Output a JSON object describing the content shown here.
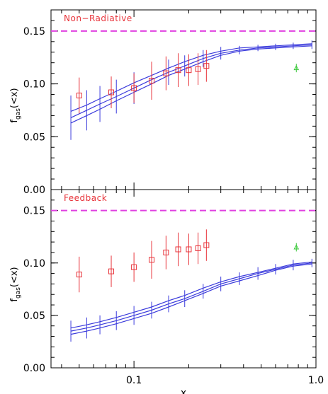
{
  "chart_data": [
    {
      "type": "line",
      "panel_label": "Non−Radiative",
      "xscale": "log",
      "xlim": [
        0.035,
        1.0
      ],
      "ylim": [
        0.0,
        0.17
      ],
      "yticks": [
        "0.00",
        "0.05",
        "0.10",
        "0.15"
      ],
      "ylabel_main": "f",
      "ylabel_sub": "gas",
      "ylabel_tail": "(<x)",
      "reference_line": {
        "y": 0.15,
        "color": "#e040e0",
        "style": "dashed"
      },
      "series": [
        {
          "kind": "model-band",
          "color": "#3b3bdc",
          "x": [
            0.045,
            0.055,
            0.065,
            0.08,
            0.1,
            0.125,
            0.155,
            0.19,
            0.24,
            0.3,
            0.38,
            0.48,
            0.6,
            0.75,
            0.95
          ],
          "upper": [
            0.074,
            0.08,
            0.086,
            0.093,
            0.101,
            0.108,
            0.115,
            0.121,
            0.127,
            0.131,
            0.134,
            0.135,
            0.136,
            0.137,
            0.138
          ],
          "mid": [
            0.068,
            0.075,
            0.081,
            0.088,
            0.096,
            0.104,
            0.111,
            0.117,
            0.124,
            0.129,
            0.132,
            0.134,
            0.135,
            0.136,
            0.137
          ],
          "lower": [
            0.063,
            0.07,
            0.076,
            0.084,
            0.092,
            0.1,
            0.108,
            0.114,
            0.121,
            0.127,
            0.131,
            0.133,
            0.134,
            0.135,
            0.136
          ],
          "err": [
            0.021,
            0.019,
            0.017,
            0.016,
            0.015,
            0.013,
            0.012,
            0.01,
            0.008,
            0.006,
            0.004,
            0.003,
            0.003,
            0.003,
            0.004
          ]
        },
        {
          "kind": "observed",
          "marker": "square",
          "color": "#e8333a",
          "x": [
            0.05,
            0.075,
            0.1,
            0.125,
            0.15,
            0.175,
            0.2,
            0.225,
            0.25
          ],
          "y": [
            0.089,
            0.092,
            0.096,
            0.103,
            0.11,
            0.113,
            0.113,
            0.114,
            0.117
          ],
          "yerr": [
            0.017,
            0.015,
            0.014,
            0.018,
            0.016,
            0.016,
            0.015,
            0.015,
            0.015
          ]
        },
        {
          "kind": "observed-point",
          "marker": "triangle",
          "color": "#39c839",
          "x": [
            0.78
          ],
          "y": [
            0.115
          ],
          "yerr": [
            0.004
          ]
        }
      ]
    },
    {
      "type": "line",
      "panel_label": "Feedback",
      "xscale": "log",
      "xlim": [
        0.035,
        1.0
      ],
      "ylim": [
        0.0,
        0.17
      ],
      "yticks": [
        "0.00",
        "0.05",
        "0.10",
        "0.15"
      ],
      "xticks": [
        "0.1",
        "1.0"
      ],
      "xlabel": "x",
      "ylabel_main": "f",
      "ylabel_sub": "gas",
      "ylabel_tail": "(<x)",
      "reference_line": {
        "y": 0.15,
        "color": "#e040e0",
        "style": "dashed"
      },
      "series": [
        {
          "kind": "model-band",
          "color": "#3b3bdc",
          "x": [
            0.045,
            0.055,
            0.065,
            0.08,
            0.1,
            0.125,
            0.155,
            0.19,
            0.24,
            0.3,
            0.38,
            0.48,
            0.6,
            0.75,
            0.95
          ],
          "upper": [
            0.038,
            0.041,
            0.044,
            0.048,
            0.053,
            0.058,
            0.064,
            0.069,
            0.076,
            0.082,
            0.087,
            0.091,
            0.095,
            0.099,
            0.101
          ],
          "mid": [
            0.035,
            0.038,
            0.041,
            0.045,
            0.05,
            0.055,
            0.061,
            0.066,
            0.073,
            0.08,
            0.085,
            0.09,
            0.094,
            0.098,
            0.1
          ],
          "lower": [
            0.032,
            0.035,
            0.038,
            0.042,
            0.047,
            0.052,
            0.058,
            0.064,
            0.071,
            0.078,
            0.083,
            0.088,
            0.093,
            0.097,
            0.099
          ],
          "err": [
            0.01,
            0.01,
            0.009,
            0.009,
            0.009,
            0.008,
            0.008,
            0.008,
            0.007,
            0.007,
            0.006,
            0.006,
            0.005,
            0.005,
            0.004
          ]
        },
        {
          "kind": "observed",
          "marker": "square",
          "color": "#e8333a",
          "x": [
            0.05,
            0.075,
            0.1,
            0.125,
            0.15,
            0.175,
            0.2,
            0.225,
            0.25
          ],
          "y": [
            0.089,
            0.092,
            0.096,
            0.103,
            0.11,
            0.113,
            0.113,
            0.114,
            0.117
          ],
          "yerr": [
            0.017,
            0.015,
            0.014,
            0.018,
            0.016,
            0.016,
            0.015,
            0.015,
            0.015
          ]
        },
        {
          "kind": "observed-point",
          "marker": "triangle",
          "color": "#39c839",
          "x": [
            0.78
          ],
          "y": [
            0.115
          ],
          "yerr": [
            0.004
          ]
        }
      ]
    }
  ]
}
